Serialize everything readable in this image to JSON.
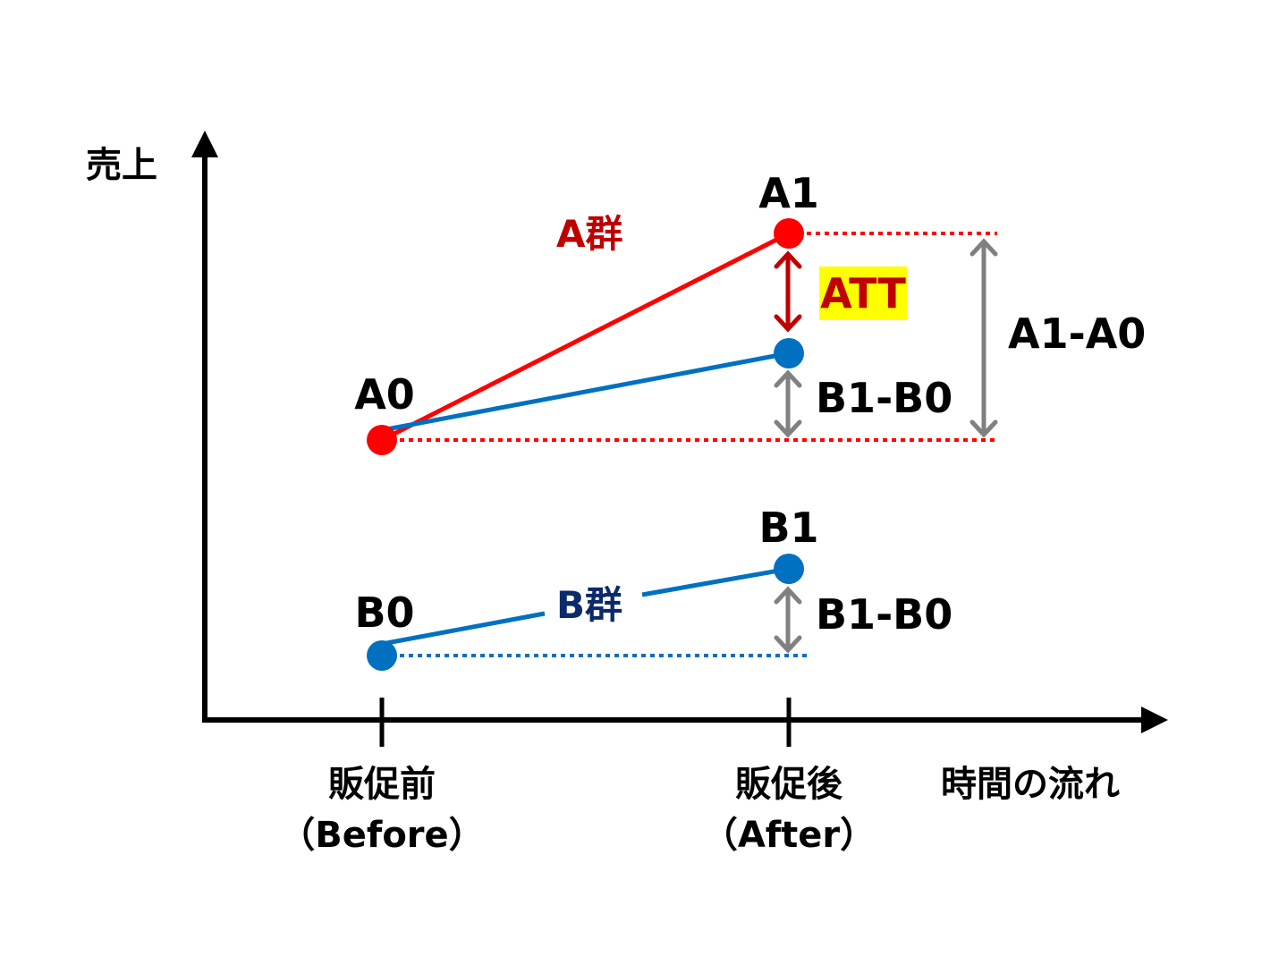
{
  "axes": {
    "y_label": "売上",
    "x_label": "時間の流れ",
    "x_ticks": [
      {
        "line1": "販促前",
        "line2": "（Before）"
      },
      {
        "line1": "販促後",
        "line2": "（After）"
      }
    ]
  },
  "points": {
    "A0": "A0",
    "A1": "A1",
    "B0": "B0",
    "B1": "B1"
  },
  "groups": {
    "a": {
      "label": "A群",
      "color": "#e00000"
    },
    "b": {
      "label": "B群",
      "color": "#0b2a6b"
    }
  },
  "annotations": {
    "att": "ATT",
    "att_color": "#c00000",
    "att_highlight": "#ffff00",
    "b_diff_upper": "B1-B0",
    "b_diff_lower": "B1-B0",
    "a_diff": "A1-A0"
  },
  "colors": {
    "red": "#ff0000",
    "blue": "#0070c0",
    "gray": "#808080",
    "dark_red": "#c00000"
  }
}
